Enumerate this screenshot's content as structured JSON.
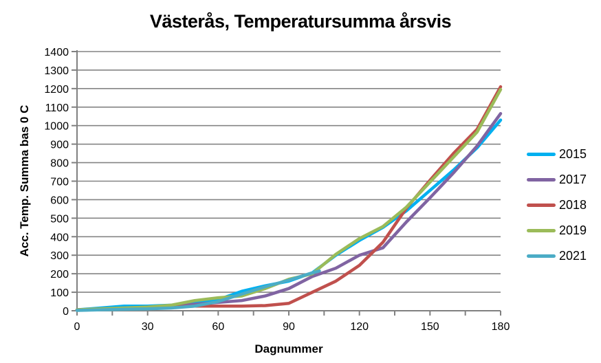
{
  "chart_data": {
    "type": "line",
    "title": "Västerås, Temperatursumma årsvis",
    "xlabel": "Dagnummer",
    "ylabel": "Acc. Temp. Summa bas 0 C",
    "xlim": [
      0,
      180
    ],
    "ylim": [
      0,
      1400
    ],
    "x_major_tick_step": 30,
    "x_minor_tick_step": 15,
    "y_tick_step": 100,
    "grid": "horizontal",
    "legend_position": "right",
    "axis_color": "#808080",
    "grid_color": "#848484",
    "series": [
      {
        "name": "2015",
        "color": "#00B0F0",
        "x": [
          0,
          10,
          20,
          30,
          40,
          50,
          60,
          70,
          80,
          90,
          100,
          110,
          120,
          130,
          140,
          150,
          160,
          170,
          180
        ],
        "values": [
          5,
          15,
          25,
          25,
          30,
          40,
          60,
          105,
          135,
          160,
          205,
          300,
          380,
          450,
          540,
          650,
          760,
          880,
          1030
        ]
      },
      {
        "name": "2017",
        "color": "#8064A2",
        "x": [
          0,
          10,
          20,
          30,
          40,
          50,
          60,
          70,
          80,
          90,
          100,
          110,
          120,
          130,
          140,
          150,
          160,
          170,
          180
        ],
        "values": [
          5,
          10,
          15,
          20,
          25,
          35,
          45,
          55,
          80,
          120,
          185,
          230,
          300,
          340,
          480,
          610,
          745,
          890,
          1065
        ]
      },
      {
        "name": "2018",
        "color": "#C0504D",
        "x": [
          0,
          10,
          20,
          30,
          40,
          50,
          60,
          70,
          80,
          90,
          100,
          110,
          120,
          130,
          140,
          150,
          160,
          170,
          180
        ],
        "values": [
          5,
          5,
          10,
          15,
          20,
          25,
          25,
          25,
          28,
          40,
          100,
          160,
          245,
          370,
          555,
          705,
          850,
          980,
          1210
        ]
      },
      {
        "name": "2019",
        "color": "#9BBB59",
        "x": [
          0,
          10,
          20,
          30,
          40,
          50,
          60,
          70,
          80,
          90,
          100,
          110,
          120,
          130,
          140,
          150,
          160,
          170,
          180
        ],
        "values": [
          5,
          10,
          15,
          20,
          30,
          55,
          70,
          80,
          120,
          170,
          200,
          305,
          390,
          455,
          560,
          695,
          830,
          965,
          1195
        ]
      },
      {
        "name": "2021",
        "color": "#4BACC6",
        "x": [
          0,
          10,
          20,
          30,
          40,
          50,
          60,
          70,
          80,
          90,
          100,
          103
        ],
        "values": [
          2,
          5,
          8,
          10,
          15,
          25,
          50,
          90,
          130,
          165,
          205,
          215
        ]
      }
    ]
  }
}
